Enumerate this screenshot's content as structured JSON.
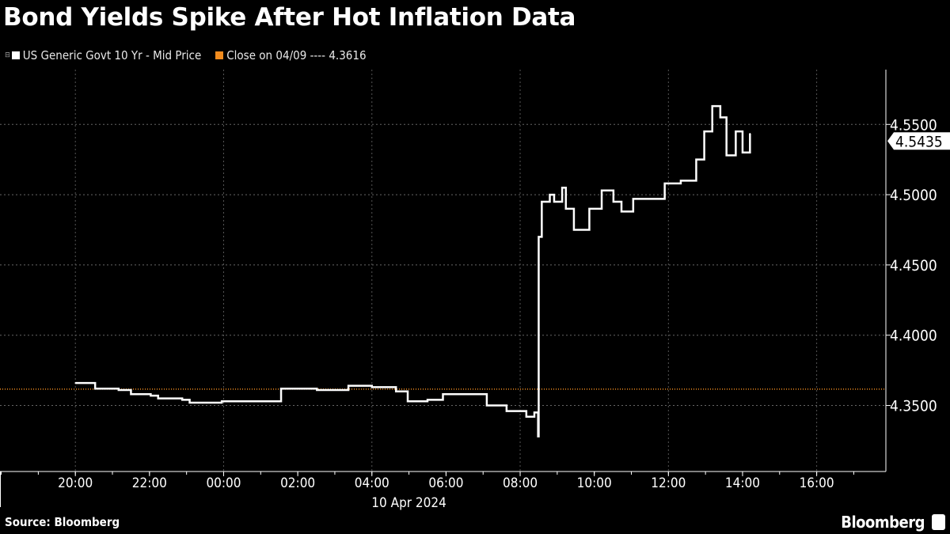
{
  "chart_data": {
    "type": "line",
    "title": "Bond Yields Spike After Hot Inflation Data",
    "series": [
      {
        "name": "US Generic Govt 10 Yr - Mid Price",
        "color": "#ffffff",
        "x": [
          "2024-04-09T20:00",
          "2024-04-09T20:32",
          "2024-04-09T21:10",
          "2024-04-09T21:30",
          "2024-04-09T22:02",
          "2024-04-09T22:14",
          "2024-04-09T22:53",
          "2024-04-09T23:05",
          "2024-04-09T23:57",
          "2024-04-10T01:26",
          "2024-04-10T01:33",
          "2024-04-10T02:31",
          "2024-04-10T03:22",
          "2024-04-10T04:00",
          "2024-04-10T04:39",
          "2024-04-10T04:58",
          "2024-04-10T05:30",
          "2024-04-10T05:55",
          "2024-04-10T06:47",
          "2024-04-10T07:06",
          "2024-04-10T07:38",
          "2024-04-10T08:10",
          "2024-04-10T08:23",
          "2024-04-10T08:29",
          "2024-04-10T08:30",
          "2024-04-10T08:35",
          "2024-04-10T08:48",
          "2024-04-10T08:55",
          "2024-04-10T09:08",
          "2024-04-10T09:14",
          "2024-04-10T09:27",
          "2024-04-10T09:40",
          "2024-04-10T09:52",
          "2024-04-10T10:12",
          "2024-04-10T10:31",
          "2024-04-10T10:44",
          "2024-04-10T11:03",
          "2024-04-10T11:28",
          "2024-04-10T11:54",
          "2024-04-10T12:20",
          "2024-04-10T12:45",
          "2024-04-10T12:58",
          "2024-04-10T13:11",
          "2024-04-10T13:24",
          "2024-04-10T13:34",
          "2024-04-10T13:49",
          "2024-04-10T14:00",
          "2024-04-10T14:12"
        ],
        "y": [
          4.366,
          4.362,
          4.361,
          4.358,
          4.357,
          4.355,
          4.354,
          4.352,
          4.353,
          4.353,
          4.362,
          4.361,
          4.364,
          4.363,
          4.36,
          4.353,
          4.354,
          4.358,
          4.358,
          4.35,
          4.346,
          4.342,
          4.345,
          4.328,
          4.47,
          4.495,
          4.5,
          4.495,
          4.505,
          4.49,
          4.475,
          4.475,
          4.49,
          4.503,
          4.495,
          4.488,
          4.497,
          4.497,
          4.508,
          4.51,
          4.525,
          4.545,
          4.563,
          4.555,
          4.528,
          4.545,
          4.53,
          4.5435
        ]
      }
    ],
    "reference_line": {
      "name": "Close on 04/09",
      "value": 4.3616,
      "label": "Close on 04/09 ---- 4.3616",
      "color": "#f28c1e"
    },
    "last_value_label": "4.5435",
    "xlim": [
      "2024-04-09T17:58",
      "2024-04-10T17:52"
    ],
    "ylim": [
      4.303,
      4.589
    ],
    "x_ticks": [
      "20:00",
      "22:00",
      "00:00",
      "02:00",
      "04:00",
      "06:00",
      "08:00",
      "10:00",
      "12:00",
      "14:00",
      "16:00"
    ],
    "x_tick_times": [
      "2024-04-09T20:00",
      "2024-04-09T22:00",
      "2024-04-10T00:00",
      "2024-04-10T02:00",
      "2024-04-10T04:00",
      "2024-04-10T06:00",
      "2024-04-10T08:00",
      "2024-04-10T10:00",
      "2024-04-10T12:00",
      "2024-04-10T14:00",
      "2024-04-10T16:00"
    ],
    "x_sublabel": "10 Apr 2024",
    "y_ticks": [
      "4.3500",
      "4.4000",
      "4.4500",
      "4.5000",
      "4.5500"
    ],
    "y_tick_values": [
      4.35,
      4.4,
      4.45,
      4.5,
      4.55
    ],
    "y_axis_side": "right",
    "grid": true,
    "legend_placement": "top-left"
  },
  "legend": {
    "series_label": "US Generic Govt 10 Yr - Mid Price",
    "close_label": "Close on 04/09 ---- 4.3616"
  },
  "footer": {
    "source": "Source: Bloomberg",
    "brand": "Bloomberg"
  }
}
